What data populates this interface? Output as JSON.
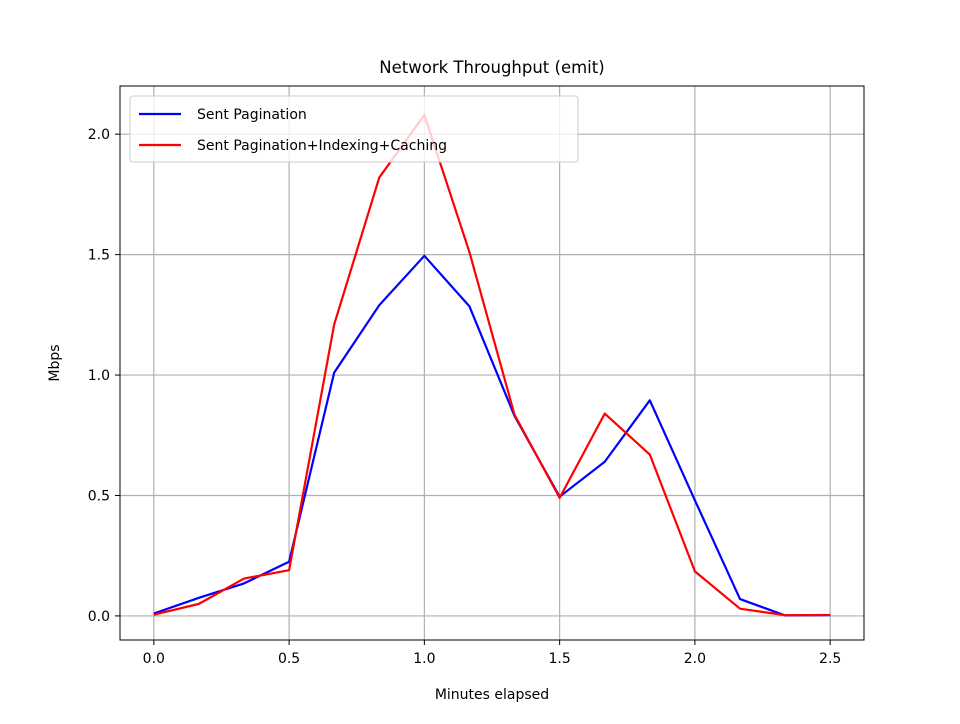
{
  "chart_data": {
    "type": "line",
    "title": "Network Throughput (emit)",
    "xlabel": "Minutes elapsed",
    "ylabel": "Mbps",
    "xlim": [
      -0.125,
      2.625
    ],
    "ylim": [
      -0.1,
      2.2
    ],
    "x_ticks": [
      0.0,
      0.5,
      1.0,
      1.5,
      2.0,
      2.5
    ],
    "x_tick_labels": [
      "0.0",
      "0.5",
      "1.0",
      "1.5",
      "2.0",
      "2.5"
    ],
    "y_ticks": [
      0.0,
      0.5,
      1.0,
      1.5,
      2.0
    ],
    "y_tick_labels": [
      "0.0",
      "0.5",
      "1.0",
      "1.5",
      "2.0"
    ],
    "grid": true,
    "legend_position": "upper-left",
    "x": [
      0.0,
      0.1667,
      0.3333,
      0.5,
      0.6667,
      0.8333,
      1.0,
      1.1667,
      1.3333,
      1.5,
      1.6667,
      1.8333,
      2.0,
      2.1667,
      2.3333,
      2.5
    ],
    "series": [
      {
        "name": "Sent Pagination",
        "color": "#0000ff",
        "values": [
          0.01,
          0.075,
          0.135,
          0.225,
          1.01,
          1.29,
          1.495,
          1.285,
          0.83,
          0.495,
          0.64,
          0.895,
          0.48,
          0.07,
          0.002,
          0.003
        ]
      },
      {
        "name": "Sent Pagination+Indexing+Caching",
        "color": "#ff0000",
        "values": [
          0.005,
          0.05,
          0.155,
          0.19,
          1.21,
          1.82,
          2.08,
          1.51,
          0.835,
          0.49,
          0.84,
          0.67,
          0.185,
          0.03,
          0.003,
          0.004
        ]
      }
    ]
  }
}
